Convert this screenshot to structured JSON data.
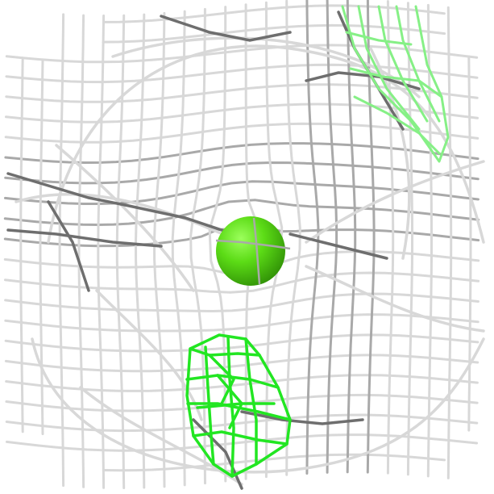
{
  "scene": {
    "kind": "3d-molecular-mesh-render",
    "background_color": "#ffffff",
    "colors": {
      "mesh_light": "#d8d8d8",
      "mesh_mid": "#a9a9a9",
      "mesh_dark": "#6e6e6e",
      "density_green": "#22e622",
      "density_green_faded": "#86f086",
      "sphere_highlight": "#9cff5c",
      "sphere_mid": "#5cdc16",
      "sphere_shadow": "#2f8f06"
    },
    "objects": [
      {
        "name": "gray-wireframe-cage",
        "icon": "wireframe-mesh-icon"
      },
      {
        "name": "green-sphere-atom",
        "icon": "sphere-icon"
      },
      {
        "name": "green-density-mesh-bottom",
        "icon": "mesh-blob-icon"
      },
      {
        "name": "green-density-mesh-top-right",
        "icon": "mesh-blob-icon"
      }
    ]
  }
}
